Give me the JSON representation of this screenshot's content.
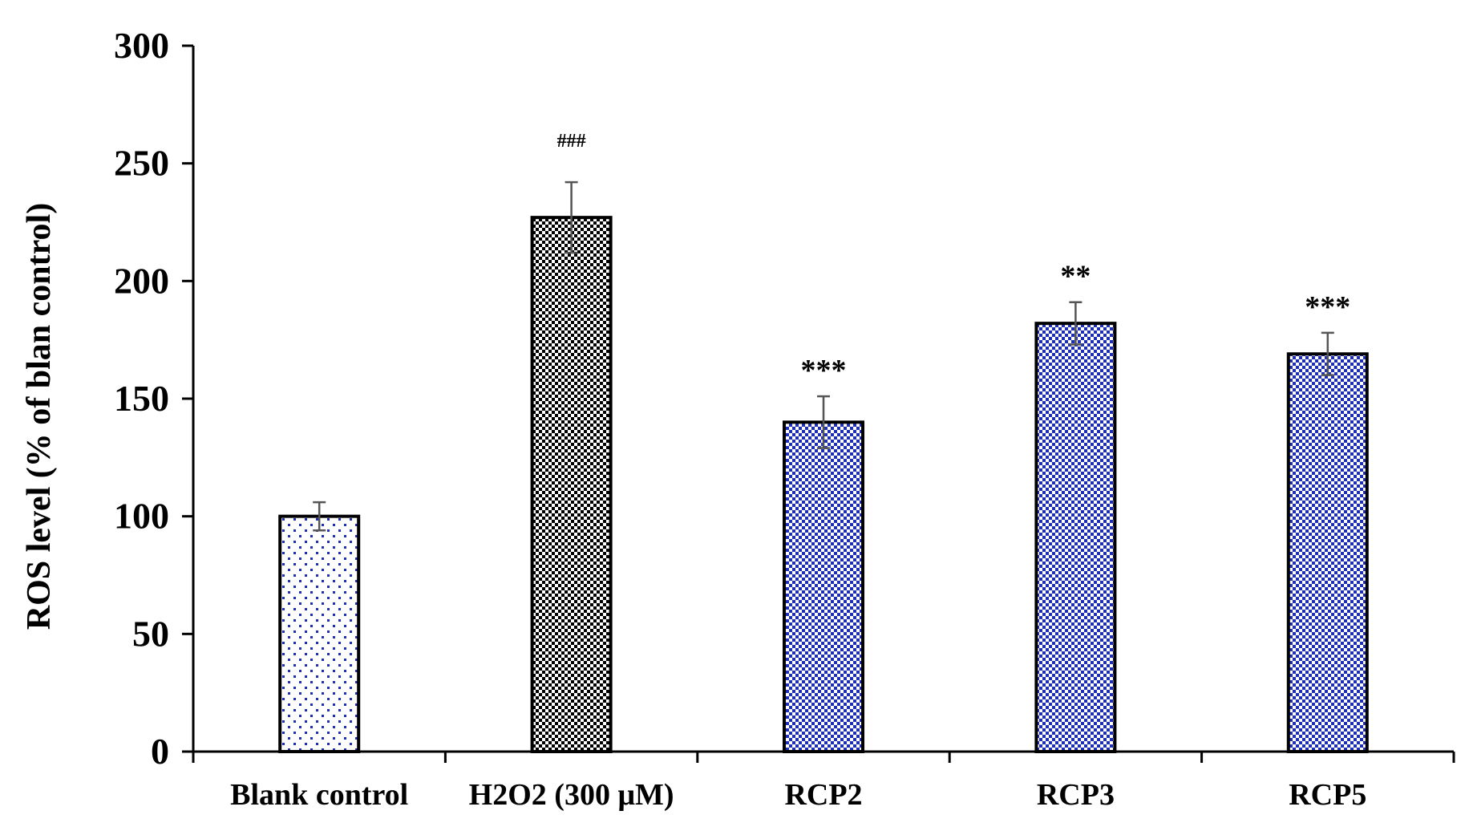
{
  "chart_data": {
    "type": "bar",
    "title": "",
    "xlabel": "",
    "ylabel": "ROS level (% of blan control)",
    "ylim": [
      0,
      300
    ],
    "yticks": [
      "0",
      "50",
      "100",
      "150",
      "200",
      "250",
      "300"
    ],
    "categories": [
      "Blank control",
      "H2O2 (300 μM)",
      "RCP2",
      "RCP3",
      "RCP5"
    ],
    "values": [
      100,
      227,
      140,
      182,
      169
    ],
    "errors": [
      6,
      15,
      11,
      9,
      9
    ],
    "annotations": [
      "",
      "###",
      "***",
      "**",
      "***"
    ],
    "patterns": [
      "sparse-blue-dots",
      "dense-black-dots",
      "dense-blue-dots",
      "dense-blue-dots",
      "dense-blue-dots"
    ],
    "colors": {
      "axis": "#000000",
      "bar_outline": "#000000",
      "blue_dots": "#1f2fb5",
      "black_dots": "#000000",
      "error_bar": "#555555"
    },
    "grid": false,
    "legend": "none"
  }
}
